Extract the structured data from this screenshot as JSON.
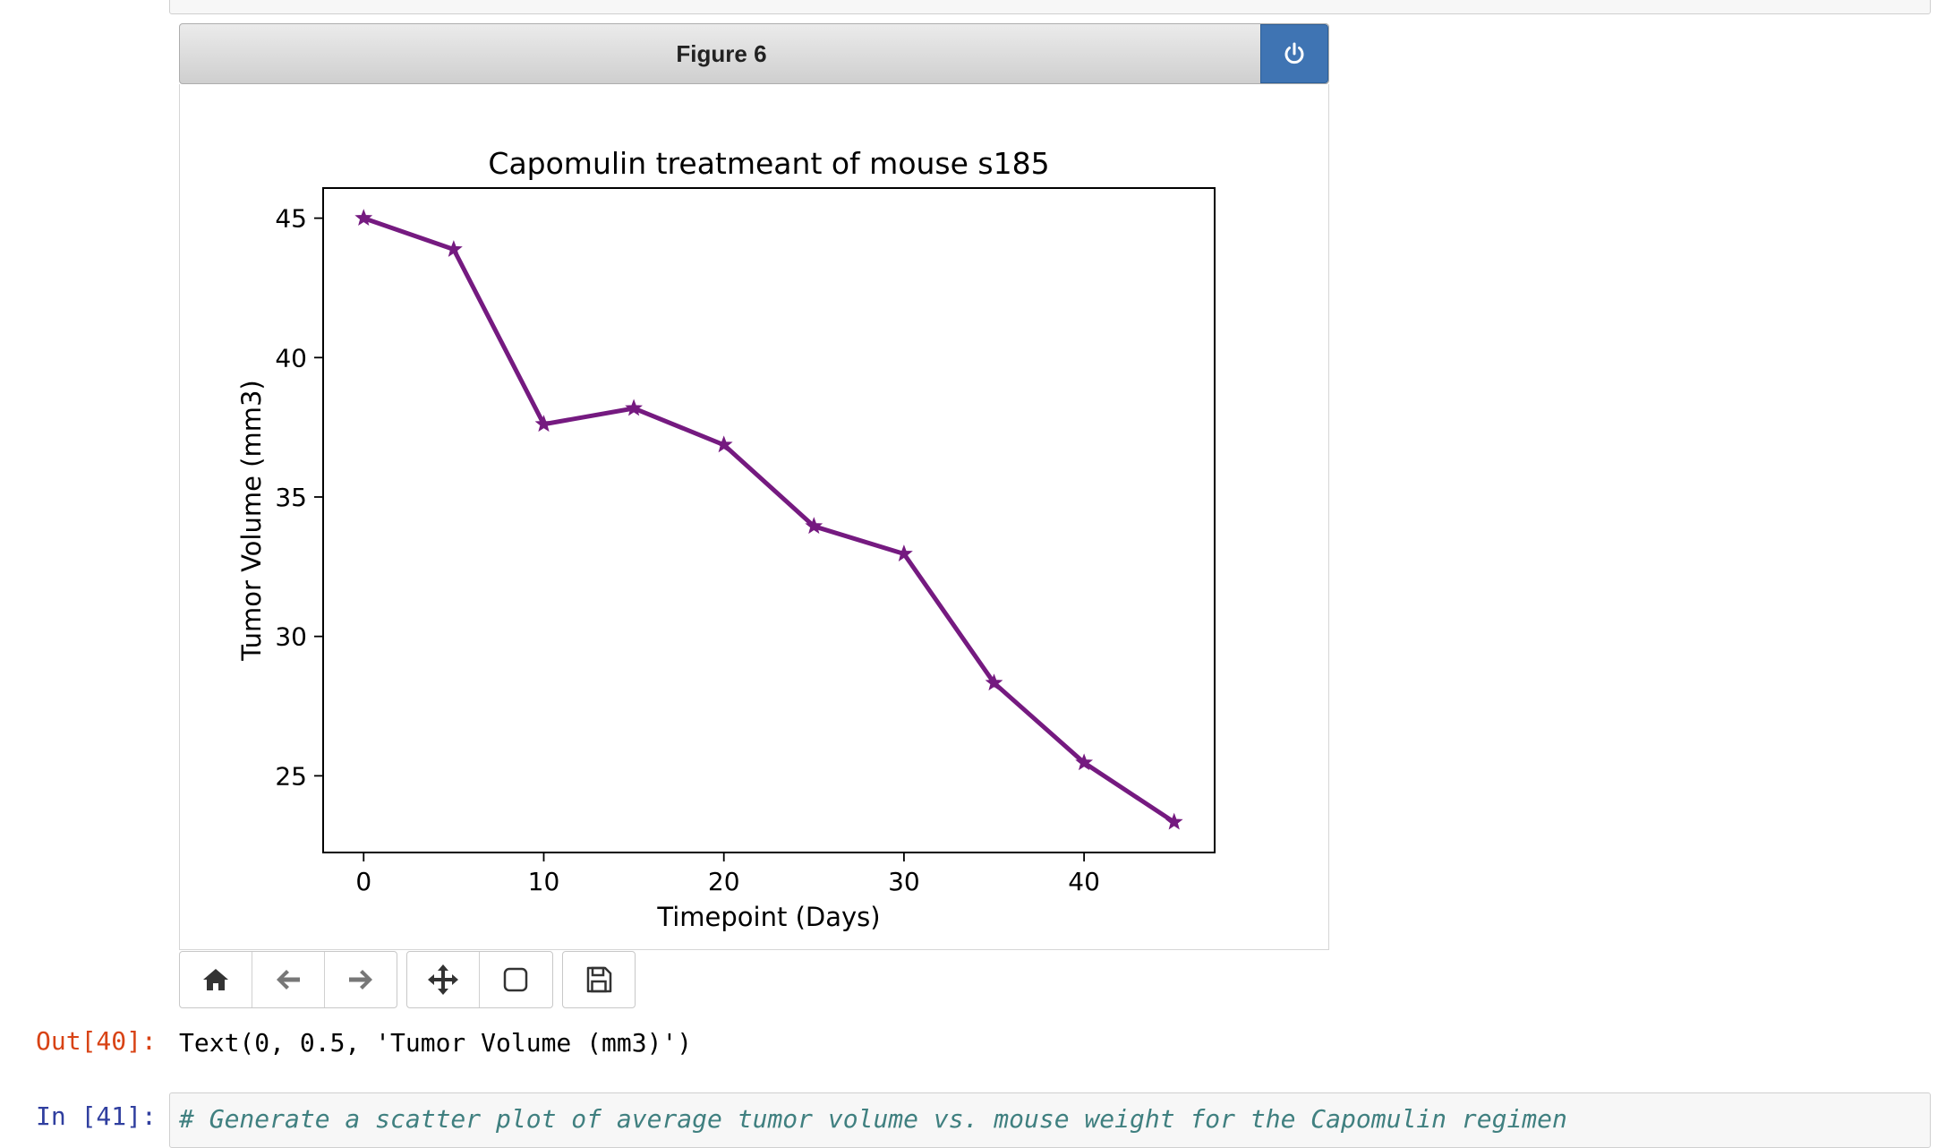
{
  "figure": {
    "title": "Figure 6",
    "power_icon": "power-icon"
  },
  "toolbar": {
    "buttons": [
      "home-icon",
      "back-arrow-icon",
      "forward-arrow-icon",
      "pan-move-icon",
      "zoom-rect-icon",
      "save-icon"
    ]
  },
  "output": {
    "prompt": "Out[40]:",
    "text": "Text(0, 0.5, 'Tumor Volume (mm3)')"
  },
  "next_cell": {
    "prompt": "In [41]:",
    "code": "# Generate a scatter plot of average tumor volume vs. mouse weight for the Capomulin regimen"
  },
  "chart_data": {
    "type": "line",
    "title": "Capomulin treatmeant of mouse s185",
    "xlabel": "Timepoint (Days)",
    "ylabel": "Tumor Volume (mm3)",
    "x": [
      0,
      5,
      10,
      15,
      20,
      25,
      30,
      35,
      40,
      45
    ],
    "series": [
      {
        "values": [
          45.0,
          43.88,
          37.61,
          38.18,
          36.87,
          33.95,
          32.96,
          28.33,
          25.47,
          23.34
        ],
        "color": "#751a80",
        "marker": "star"
      }
    ],
    "xticks": [
      0,
      10,
      20,
      30,
      40
    ],
    "yticks": [
      25,
      30,
      35,
      40,
      45
    ],
    "xlim": [
      -2.25,
      47.25
    ],
    "ylim": [
      22.25,
      46.08
    ],
    "grid": false
  }
}
